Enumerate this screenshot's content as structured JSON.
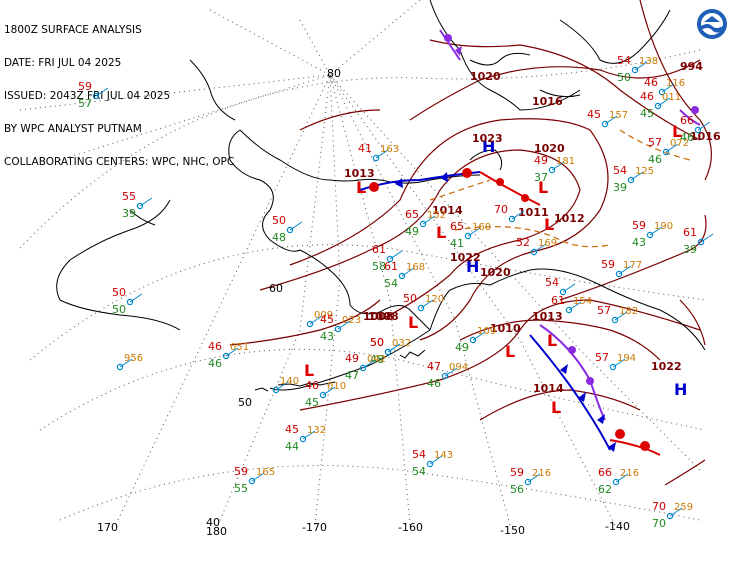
{
  "header": {
    "line1": "1800Z SURFACE ANALYSIS",
    "line2": "DATE: FRI JUL 04 2025",
    "line3": "ISSUED: 2043Z FRI JUL 04 2025",
    "line4": "BY WPC ANALYST PUTNAM",
    "line5": "COLLABORATING CENTERS: WPC, NHC, OPC"
  },
  "colors": {
    "isobar": "#7a0000",
    "coast": "#000000",
    "grid": "#444444",
    "temp": "#cc0000",
    "dew": "#228822",
    "pressure": "#cc7a00",
    "cold_front": "#0000cc",
    "warm_front": "#dd0000",
    "occluded": "#8a2be2",
    "trough": "#cc6600",
    "station": "#0088cc"
  },
  "grid_labels": {
    "lat": [
      "80",
      "60",
      "50",
      "40"
    ],
    "lon": [
      "170",
      "180",
      "-170",
      "-160",
      "-150",
      "-140"
    ]
  },
  "pressure_centers": [
    {
      "type": "H",
      "value": "1023"
    },
    {
      "type": "L",
      "value": "1013"
    },
    {
      "type": "L",
      "value": "1014"
    },
    {
      "type": "L",
      "value": "1011"
    },
    {
      "type": "H",
      "value": "1022"
    },
    {
      "type": "L",
      "value": "1010"
    },
    {
      "type": "L",
      "value": "1013"
    },
    {
      "type": "L",
      "value": "1014"
    },
    {
      "type": "H",
      "value": "1022"
    },
    {
      "type": "L",
      "value": "994"
    },
    {
      "type": "L",
      "value": "1008"
    },
    {
      "type": "L",
      "value": ""
    },
    {
      "type": "L",
      "value": ""
    }
  ],
  "isobar_labels": [
    "1020",
    "1016",
    "1020",
    "1012",
    "1008",
    "1020",
    "1016"
  ],
  "stations": [
    {
      "t": "59",
      "d": "57",
      "p": ""
    },
    {
      "t": "55",
      "d": "39",
      "p": ""
    },
    {
      "t": "50",
      "d": "50",
      "p": ""
    },
    {
      "t": "",
      "d": "",
      "p": "956"
    },
    {
      "t": "46",
      "d": "46",
      "p": "051"
    },
    {
      "t": "",
      "d": "",
      "p": "009"
    },
    {
      "t": "45",
      "d": "43",
      "p": "023"
    },
    {
      "t": "50",
      "d": "48",
      "p": ""
    },
    {
      "t": "",
      "d": "",
      "p": "140"
    },
    {
      "t": "46",
      "d": "45",
      "p": "010"
    },
    {
      "t": "49",
      "d": "47",
      "p": "042"
    },
    {
      "t": "50",
      "d": "",
      "p": "032"
    },
    {
      "t": "45",
      "d": "44",
      "p": "132"
    },
    {
      "t": "59",
      "d": "55",
      "p": "165"
    },
    {
      "t": "54",
      "d": "54",
      "p": "143"
    },
    {
      "t": "47",
      "d": "46",
      "p": "094"
    },
    {
      "t": "",
      "d": "49",
      "p": "109"
    },
    {
      "t": "59",
      "d": "56",
      "p": "216"
    },
    {
      "t": "66",
      "d": "62",
      "p": "216"
    },
    {
      "t": "70",
      "d": "70",
      "p": "259"
    },
    {
      "t": "57",
      "d": "",
      "p": "194"
    },
    {
      "t": "59",
      "d": "",
      "p": "177"
    },
    {
      "t": "59",
      "d": "43",
      "p": "190"
    },
    {
      "t": "57",
      "d": "",
      "p": "182"
    },
    {
      "t": "61",
      "d": "39",
      "p": ""
    },
    {
      "t": "54",
      "d": "39",
      "p": "125"
    },
    {
      "t": "49",
      "d": "37",
      "p": "181"
    },
    {
      "t": "45",
      "d": "",
      "p": "157"
    },
    {
      "t": "46",
      "d": "",
      "p": "116"
    },
    {
      "t": "54",
      "d": "50",
      "p": "138"
    },
    {
      "t": "46",
      "d": "45",
      "p": "011"
    },
    {
      "t": "57",
      "d": "46",
      "p": "072"
    },
    {
      "t": "66",
      "d": "46",
      "p": ""
    },
    {
      "t": "41",
      "d": "",
      "p": "163"
    },
    {
      "t": "50",
      "d": "48",
      "p": ""
    },
    {
      "t": "65",
      "d": "49",
      "p": "152"
    },
    {
      "t": "65",
      "d": "41",
      "p": "160"
    },
    {
      "t": "70",
      "d": "",
      "p": ""
    },
    {
      "t": "61",
      "d": "54",
      "p": "168"
    },
    {
      "t": "61",
      "d": "58",
      "p": ""
    },
    {
      "t": "50",
      "d": "",
      "p": "120"
    },
    {
      "t": "52",
      "d": "",
      "p": "169"
    },
    {
      "t": "54",
      "d": "",
      "p": ""
    },
    {
      "t": "61",
      "d": "",
      "p": "154"
    }
  ]
}
